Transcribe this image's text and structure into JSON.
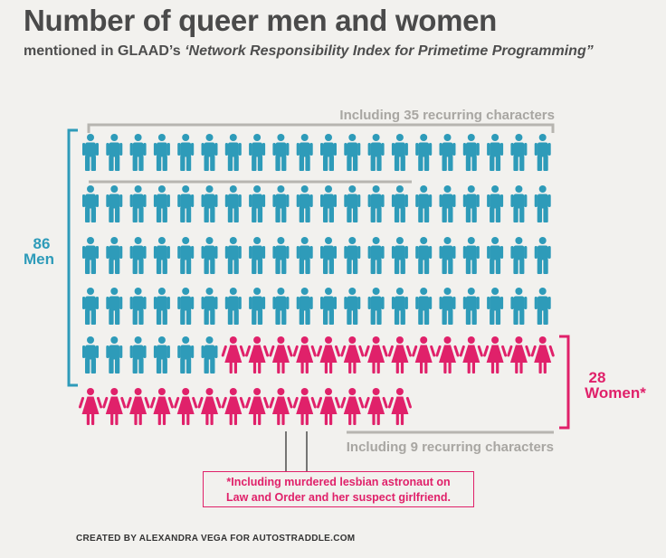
{
  "title": "Number of queer men and women",
  "subtitle_prefix": "mentioned in GLAAD’s ",
  "subtitle_italic": "‘Network Responsibility Index for Primetime Programming”",
  "colors": {
    "men": "#2e9bb9",
    "women": "#e0216a",
    "bracket_gray": "#b7b5b0",
    "text": "#4a4a4a"
  },
  "icons": {
    "man": "man-figure-icon",
    "woman": "woman-figure-icon"
  },
  "chart_data": {
    "type": "pictogram",
    "categories": [
      "Men",
      "Women"
    ],
    "values": [
      86,
      28
    ],
    "men": {
      "count": "86",
      "label": "Men",
      "recurring_label": "Including 35 recurring characters",
      "recurring": 35
    },
    "women": {
      "count": "28",
      "label": "Women*",
      "recurring_label": "Including 9 recurring characters",
      "recurring": 9
    }
  },
  "note": {
    "line1": "*Including murdered lesbian astronaut on",
    "line2": "Law and Order and her suspect girlfriend."
  },
  "credit": "CREATED BY ALEXANDRA VEGA FOR AUTOSTRADDLE.COM"
}
